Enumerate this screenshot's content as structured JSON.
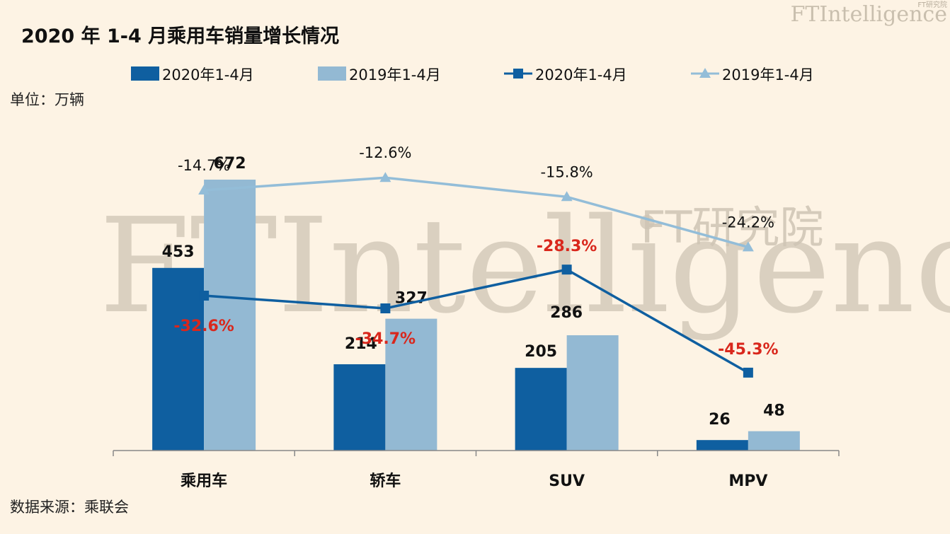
{
  "title": "2020 年 1-4 月乘用车销量增长情况",
  "unit_label": "单位：万辆",
  "source_label": "数据来源：乘联会",
  "brand": {
    "text": "FTIntelligence",
    "sub": "FT研究院"
  },
  "watermark": {
    "text": "FTIntelligence",
    "cn": "FT研究院"
  },
  "colors": {
    "bar_2020": "#0f5fa0",
    "bar_2019": "#93b9d3",
    "line_2020": "#0f5fa0",
    "line_2019": "#93bdd8",
    "pct_red": "#d9271c",
    "background": "#fdf3e4"
  },
  "legend": [
    {
      "label": "2020年1-4月",
      "kind": "bar",
      "color": "#0f5fa0"
    },
    {
      "label": "2019年1-4月",
      "kind": "bar",
      "color": "#93b9d3"
    },
    {
      "label": "2020年1-4月",
      "kind": "line-square",
      "color": "#0f5fa0"
    },
    {
      "label": "2019年1-4月",
      "kind": "line-triangle",
      "color": "#93bdd8"
    }
  ],
  "chart_data": {
    "type": "bar",
    "categories": [
      "乘用车",
      "轿车",
      "SUV",
      "MPV"
    ],
    "series": [
      {
        "name": "2020年1-4月",
        "values": [
          453,
          214,
          205,
          26
        ]
      },
      {
        "name": "2019年1-4月",
        "values": [
          672,
          327,
          286,
          48
        ]
      }
    ],
    "value_labels": [
      [
        "453",
        "214",
        "205",
        "26"
      ],
      [
        "672",
        "327",
        "286",
        "48"
      ]
    ],
    "line_series": [
      {
        "name": "2020年1-4月",
        "marker": "square",
        "labels": [
          "-32.6%",
          "-34.7%",
          "-28.3%",
          "-45.3%"
        ],
        "values": [
          -32.6,
          -34.7,
          -28.3,
          -45.3
        ],
        "y_range": [
          -55,
          -20
        ]
      },
      {
        "name": "2019年1-4月",
        "marker": "triangle",
        "labels": [
          "-14.7%",
          "-12.6%",
          "-15.8%",
          "-24.2%"
        ],
        "values": [
          -14.7,
          -12.6,
          -15.8,
          -24.2
        ],
        "y_range": [
          -42,
          -3
        ]
      }
    ],
    "ylim": [
      0,
      800
    ],
    "xlabel": "",
    "ylabel": "",
    "grid": false,
    "legend_position": "top"
  }
}
